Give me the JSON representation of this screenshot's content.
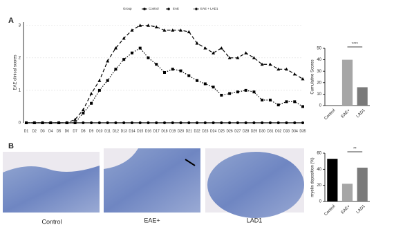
{
  "panels": {
    "a": "A",
    "b": "B"
  },
  "images": {
    "captions": [
      "Control",
      "EAE+",
      "LAD1"
    ]
  },
  "chart_data": [
    {
      "type": "line",
      "ylabel": "EAE clinical scores",
      "legend_title": "Group",
      "legend": "top",
      "categories": [
        "D1",
        "D2",
        "D3",
        "D4",
        "D5",
        "D6",
        "D7",
        "D8",
        "D9",
        "D10",
        "D11",
        "D12",
        "D13",
        "D14",
        "D15",
        "D16",
        "D17",
        "D18",
        "D19",
        "D20",
        "D21",
        "D22",
        "D23",
        "D24",
        "D25",
        "D26",
        "D27",
        "D28",
        "D29",
        "D30",
        "D31",
        "D32",
        "D33",
        "D34",
        "D35"
      ],
      "series": [
        {
          "name": "Control",
          "color": "#000000",
          "dash": "solid",
          "values": [
            0,
            0,
            0,
            0,
            0,
            0,
            0,
            0,
            0,
            0,
            0,
            0,
            0,
            0,
            0,
            0,
            0,
            0,
            0,
            0,
            0,
            0,
            0,
            0,
            0,
            0,
            0,
            0,
            0,
            0,
            0,
            0,
            0,
            0,
            0
          ]
        },
        {
          "name": "EAE",
          "color": "#000000",
          "dash": "dashed",
          "values": [
            0,
            0,
            0,
            0,
            0,
            0,
            0.1,
            0.4,
            0.9,
            1.3,
            1.9,
            2.3,
            2.6,
            2.85,
            3.0,
            3.0,
            2.95,
            2.85,
            2.85,
            2.85,
            2.8,
            2.45,
            2.3,
            2.15,
            2.3,
            2.0,
            2.0,
            2.15,
            2.0,
            1.8,
            1.8,
            1.65,
            1.65,
            1.5,
            1.35
          ]
        },
        {
          "name": "EAE + LAD1",
          "color": "#000000",
          "dash": "dotted",
          "values": [
            0,
            0,
            0,
            0,
            0,
            0,
            0,
            0.3,
            0.6,
            1.0,
            1.3,
            1.65,
            1.95,
            2.15,
            2.3,
            2.0,
            1.8,
            1.55,
            1.65,
            1.6,
            1.45,
            1.3,
            1.2,
            1.1,
            0.85,
            0.9,
            0.95,
            1.0,
            0.95,
            0.7,
            0.7,
            0.55,
            0.65,
            0.65,
            0.5
          ]
        }
      ],
      "ylim": [
        0,
        3.1
      ],
      "yticks": [
        0,
        1,
        2,
        3
      ],
      "grid": true
    },
    {
      "type": "bar",
      "ylabel": "Cumulative Scores",
      "categories": [
        "Control",
        "EAE+",
        "LAD1"
      ],
      "values": [
        0,
        40,
        16
      ],
      "colors": [
        "#000000",
        "#a6a6a6",
        "#7a7a7a"
      ],
      "ylim": [
        0,
        50
      ],
      "yticks": [
        0,
        10,
        20,
        30,
        40,
        50
      ],
      "annotation": "****"
    },
    {
      "type": "bar",
      "ylabel": "myelin deposition (%)",
      "categories": [
        "Control",
        "EAE+",
        "LAD1"
      ],
      "values": [
        53,
        22,
        42
      ],
      "colors": [
        "#000000",
        "#a6a6a6",
        "#7a7a7a"
      ],
      "ylim": [
        0,
        60
      ],
      "yticks": [
        0,
        20,
        40,
        60
      ],
      "annotation": "**"
    }
  ]
}
